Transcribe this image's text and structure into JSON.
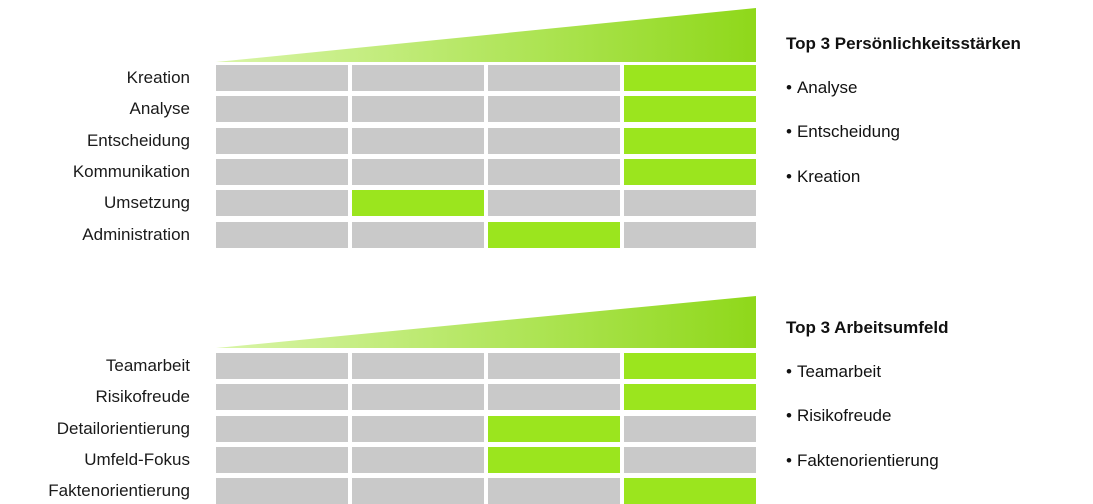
{
  "colors": {
    "active": "#9be51e",
    "inactive": "#c9c9c9",
    "ramp_start": "#d9f5a8",
    "ramp_end": "#8fd81a"
  },
  "chart_data": [
    {
      "type": "table",
      "levels": 4,
      "rows": [
        {
          "label": "Kreation",
          "level": 4
        },
        {
          "label": "Analyse",
          "level": 4
        },
        {
          "label": "Entscheidung",
          "level": 4
        },
        {
          "label": "Kommunikation",
          "level": 4
        },
        {
          "label": "Umsetzung",
          "level": 2
        },
        {
          "label": "Administration",
          "level": 3
        }
      ]
    },
    {
      "type": "table",
      "levels": 4,
      "rows": [
        {
          "label": "Teamarbeit",
          "level": 4
        },
        {
          "label": "Risikofreude",
          "level": 4
        },
        {
          "label": "Detailorientierung",
          "level": 3
        },
        {
          "label": "Umfeld-Fokus",
          "level": 3
        },
        {
          "label": "Faktenorientierung",
          "level": 4
        }
      ]
    }
  ],
  "sidebars": [
    {
      "title": "Top 3 Persönlichkeitsstärken",
      "bullet": "•",
      "items": [
        "Analyse",
        "Entscheidung",
        "Kreation"
      ]
    },
    {
      "title": "Top 3 Arbeitsumfeld",
      "bullet": "•",
      "items": [
        "Teamarbeit",
        "Risikofreude",
        "Faktenorientierung"
      ]
    }
  ]
}
